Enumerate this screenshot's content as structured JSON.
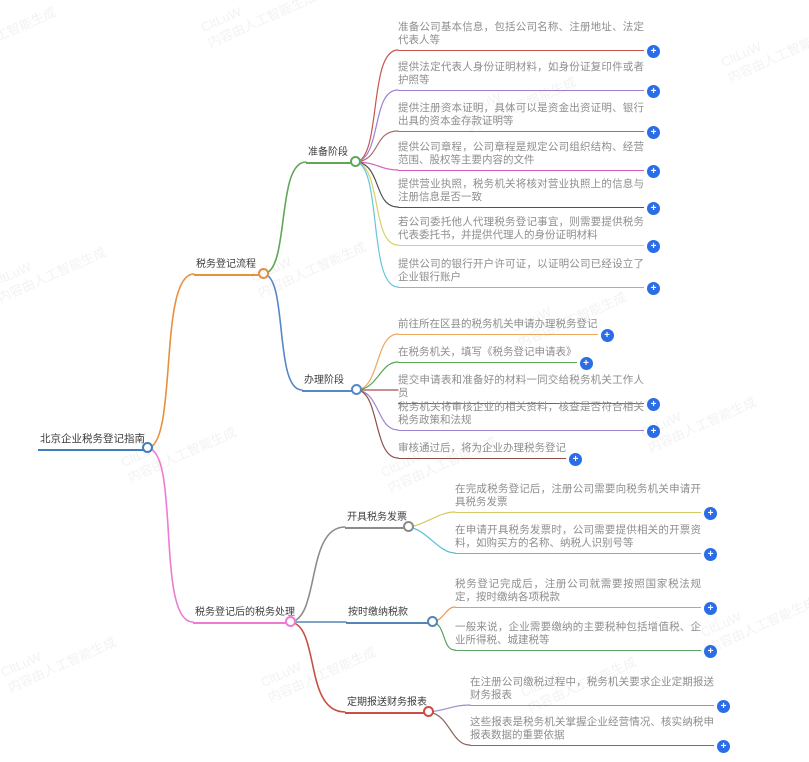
{
  "watermark": {
    "line1": "CltLuW",
    "line2": "内容由人工智能生成"
  },
  "icons": {
    "plus": "+"
  },
  "palette": {
    "plus_bg": "#2a6de6",
    "leaf_text": "#8e8e8e",
    "label_text": "#3c3c3c",
    "background": "#ffffff"
  },
  "root": {
    "label": "北京企业税务登记指南",
    "color": "#3f7dbf"
  },
  "branches": [
    {
      "label": "税务登记流程",
      "color": "#e6913f",
      "children": [
        {
          "label": "准备阶段",
          "color": "#61a659",
          "children": [
            {
              "label": "准备公司基本信息，包括公司名称、注册地址、法定代表人等",
              "color": "#c4564e"
            },
            {
              "label": "提供法定代表人身份证明材料，如身份证复印件或者护照等",
              "color": "#9f7fd1"
            },
            {
              "label": "提供注册资本证明，具体可以是资金出资证明、银行出具的资本金存款证明等",
              "color": "#a96e66"
            },
            {
              "label": "提供公司章程，公司章程是规定公司组织结构、经营范围、股权等主要内容的文件",
              "color": "#d65bbe"
            },
            {
              "label": "提供营业执照，税务机关将核对营业执照上的信息与注册信息是否一致",
              "color": "#50505a"
            },
            {
              "label": "若公司委托他人代理税务登记事宜，则需要提供税务代表委托书，并提供代理人的身份证明材料",
              "color": "#d8d264"
            },
            {
              "label": "提供公司的银行开户许可证，以证明公司已经设立了企业银行账户",
              "color": "#66c6da"
            }
          ]
        },
        {
          "label": "办理阶段",
          "color": "#5488c7",
          "children": [
            {
              "label": "前往所在区县的税务机关申请办理税务登记",
              "color": "#eda75f"
            },
            {
              "label": "在税务机关，填写《税务登记申请表》",
              "color": "#57a457"
            },
            {
              "label": "提交申请表和准备好的材料一同交给税务机关工作人员",
              "color": "#ab4d49"
            },
            {
              "label": "税务机关将审核企业的相关资料，核查是否符合相关税务政策和法规",
              "color": "#9d84cf"
            },
            {
              "label": "审核通过后，将为企业办理税务登记",
              "color": "#8d5049"
            }
          ]
        }
      ]
    },
    {
      "label": "税务登记后的税务处理",
      "color": "#ee7bd2",
      "children": [
        {
          "label": "开具税务发票",
          "color": "#8c8c8c",
          "children": [
            {
              "label": "在完成税务登记后，注册公司需要向税务机关申请开具税务发票",
              "color": "#d6ca62"
            },
            {
              "label": "在申请开具税务发票时，公司需要提供相关的开票资料，如购买方的名称、纳税人识别号等",
              "color": "#57bcd9"
            }
          ]
        },
        {
          "label": "按时缴纳税款",
          "color": "#5585b5",
          "children": [
            {
              "label": "税务登记完成后，注册公司就需要按照国家税法规定，按时缴纳各项税款",
              "color": "#ec9a52"
            },
            {
              "label": "一般来说，企业需要缴纳的主要税种包括增值税、企业所得税、城建税等",
              "color": "#5ba05f"
            }
          ]
        },
        {
          "label": "定期报送财务报表",
          "color": "#c94f44",
          "children": [
            {
              "label": "在注册公司缴税过程中，税务机关要求企业定期报送财务报表",
              "color": "#9c8bcd"
            },
            {
              "label": "这些报表是税务机关掌握企业经营情况、核实纳税申报表数据的重要依据",
              "color": "#8d655c"
            }
          ]
        }
      ]
    }
  ]
}
